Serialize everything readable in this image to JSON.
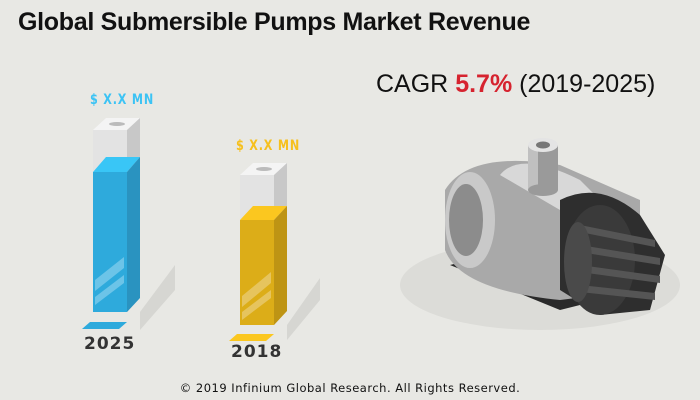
{
  "title": "Global Submersible Pumps Market Revenue",
  "cagr": {
    "label": "CAGR",
    "value": "5.7%",
    "period": "(2019-2025)"
  },
  "chart_data": {
    "type": "bar",
    "title": "Global Submersible Pumps Market Revenue",
    "categories": [
      "2025",
      "2018"
    ],
    "value_labels": [
      "$ X.X MN",
      "$ X.X MN"
    ],
    "colors": [
      "#2eaadc",
      "#dcad18"
    ]
  },
  "footer": "© 2019 Infinium Global Research. All Rights Reserved."
}
